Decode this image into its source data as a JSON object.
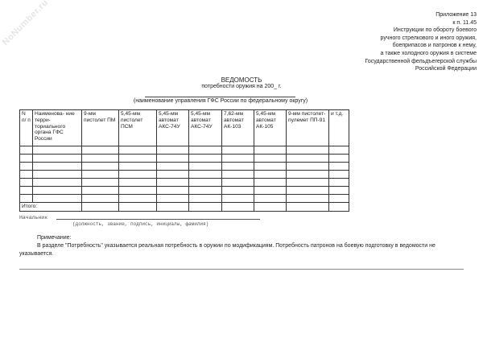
{
  "watermark": "NoNumber.ru",
  "appendix": {
    "lines": [
      "Приложение 13",
      "к п. 11.45",
      "Инструкции по обороту боевого",
      "ручного стрелкового и иного оружия,",
      "боеприпасов и патронов к нему,",
      "а также холодного оружия в системе",
      "Государственной фельдъегерской службы",
      "Российской Федерации"
    ]
  },
  "title": "ВЕДОМОСТЬ",
  "subtitle": "потребности оружия на 200_ г.",
  "org_caption": "(наименование управления ГФС России по федеральному округу)",
  "table": {
    "headers": [
      "N п/ п",
      "Наименова- ние терри- ториального органа ГФС России",
      "9-мм пистолет ПМ",
      "5,45-мм пистолет ПСМ",
      "5,45-мм автомат АКС-74У",
      "5,45-мм автомат АКС-74У",
      "7,62-мм автомат АК-103",
      "5,45-мм автомат АК-105",
      "9-мм пистолет- пулемет ПП-91",
      "и т.д."
    ],
    "total_label": "Итого:"
  },
  "signature": {
    "label": "Начальник",
    "caption": "(должность, звание, подпись, инициалы, фамилия)"
  },
  "note": {
    "heading": "Примечание:",
    "text": "В разделе \"Потребность\" указывается реальная потребность в оружии по модификациям. Потребность патронов на боевую подготовку в ведомости не указывается."
  }
}
